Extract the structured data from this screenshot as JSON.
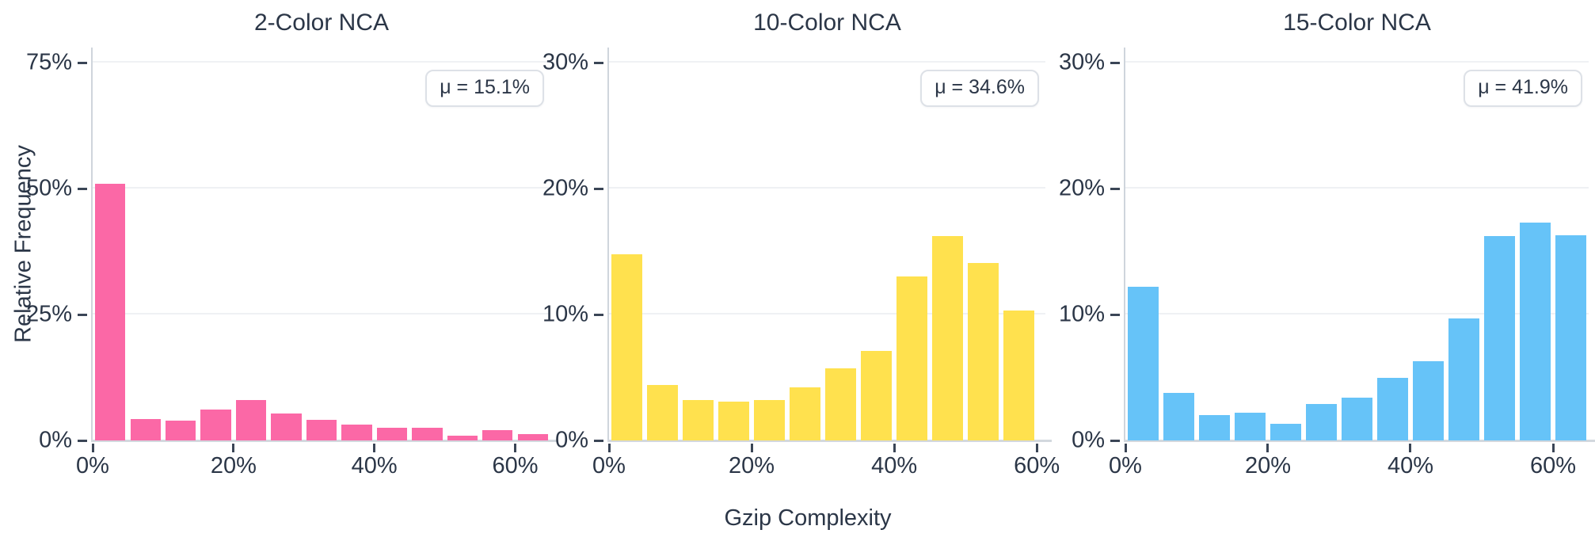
{
  "figure": {
    "xlabel": "Gzip Complexity",
    "ylabel": "Relative Frequency"
  },
  "chart_data": [
    {
      "type": "bar",
      "title": "2-Color NCA",
      "mean_label": "μ = 15.1%",
      "color": "#fb68a6",
      "xlabel": "Gzip Complexity",
      "ylabel": "Relative Frequency",
      "bin_edges": [
        0,
        5,
        10,
        15,
        20,
        25,
        30,
        35,
        40,
        45,
        50,
        55,
        60,
        65
      ],
      "values": [
        51.0,
        4.3,
        3.9,
        6.1,
        8.1,
        5.3,
        4.1,
        3.2,
        2.5,
        2.5,
        0.9,
        2.1,
        1.3
      ],
      "xlim": [
        0,
        65
      ],
      "ylim": [
        0,
        78
      ],
      "yticks": [
        {
          "value": 0,
          "label": "0%"
        },
        {
          "value": 25,
          "label": "25%"
        },
        {
          "value": 50,
          "label": "50%"
        },
        {
          "value": 75,
          "label": "75%"
        }
      ],
      "xticks": [
        {
          "value": 0,
          "label": "0%"
        },
        {
          "value": 20,
          "label": "20%"
        },
        {
          "value": 40,
          "label": "40%"
        },
        {
          "value": 60,
          "label": "60%"
        }
      ],
      "grid": true
    },
    {
      "type": "bar",
      "title": "10-Color NCA",
      "mean_label": "μ = 34.6%",
      "color": "#ffe14e",
      "xlabel": "Gzip Complexity",
      "ylabel": "Relative Frequency",
      "bin_edges": [
        0,
        5,
        10,
        15,
        20,
        25,
        30,
        35,
        40,
        45,
        50,
        55,
        60
      ],
      "values": [
        14.8,
        4.4,
        3.2,
        3.1,
        3.2,
        4.2,
        5.7,
        7.1,
        13.0,
        16.2,
        14.1,
        10.3
      ],
      "xlim": [
        0,
        61.2
      ],
      "ylim": [
        0,
        31.2
      ],
      "yticks": [
        {
          "value": 0,
          "label": "0%"
        },
        {
          "value": 10,
          "label": "10%"
        },
        {
          "value": 20,
          "label": "20%"
        },
        {
          "value": 30,
          "label": "30%"
        }
      ],
      "xticks": [
        {
          "value": 0,
          "label": "0%"
        },
        {
          "value": 20,
          "label": "20%"
        },
        {
          "value": 40,
          "label": "40%"
        },
        {
          "value": 60,
          "label": "60%"
        }
      ],
      "grid": true
    },
    {
      "type": "bar",
      "title": "15-Color NCA",
      "mean_label": "μ = 41.9%",
      "color": "#66c3f8",
      "xlabel": "Gzip Complexity",
      "ylabel": "Relative Frequency",
      "bin_edges": [
        0,
        5,
        10,
        15,
        20,
        25,
        30,
        35,
        40,
        45,
        50,
        55,
        60,
        65
      ],
      "values": [
        12.2,
        3.8,
        2.0,
        2.2,
        1.3,
        2.9,
        3.4,
        5.0,
        6.3,
        9.7,
        16.2,
        17.3,
        16.3
      ],
      "xlim": [
        0,
        65
      ],
      "ylim": [
        0,
        31.2
      ],
      "yticks": [
        {
          "value": 0,
          "label": "0%"
        },
        {
          "value": 10,
          "label": "10%"
        },
        {
          "value": 20,
          "label": "20%"
        },
        {
          "value": 30,
          "label": "30%"
        }
      ],
      "xticks": [
        {
          "value": 0,
          "label": "0%"
        },
        {
          "value": 20,
          "label": "20%"
        },
        {
          "value": 40,
          "label": "40%"
        },
        {
          "value": 60,
          "label": "60%"
        }
      ],
      "grid": true
    }
  ]
}
